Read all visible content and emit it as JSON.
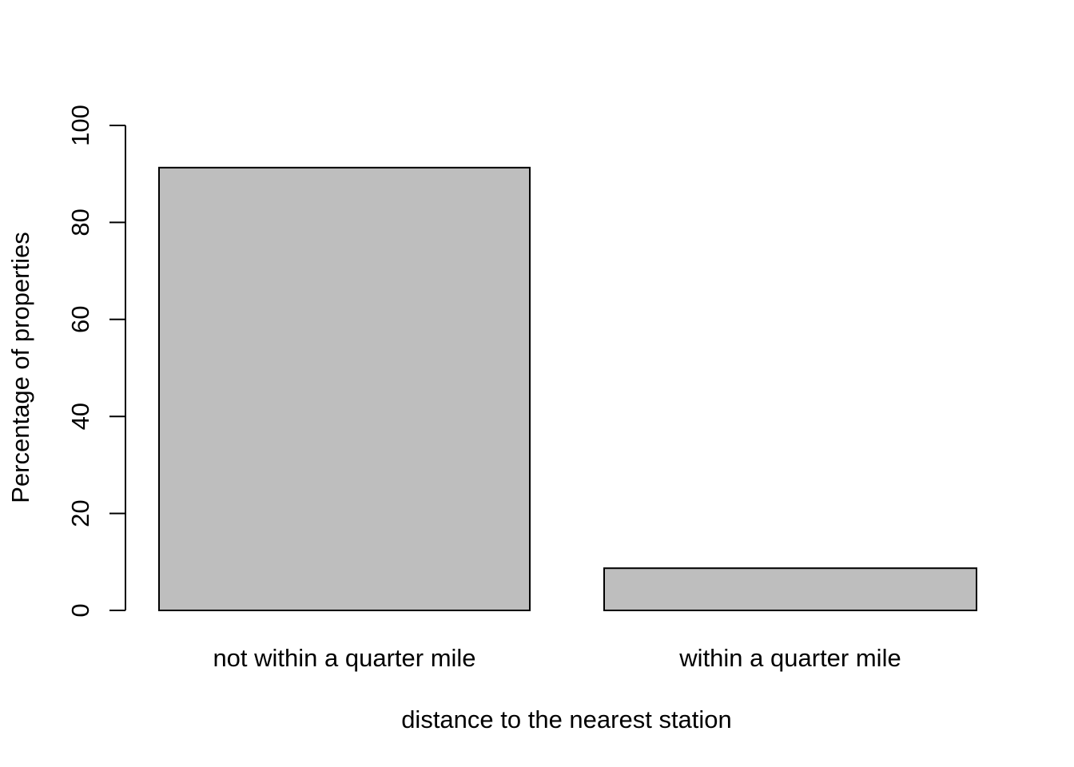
{
  "chart_data": {
    "type": "bar",
    "categories": [
      "not within a quarter mile",
      "within a quarter mile"
    ],
    "values": [
      91.3,
      8.7
    ],
    "xlabel": "distance to the nearest station",
    "ylabel": "Percentage of properties",
    "ylim": [
      0,
      100
    ],
    "yticks": [
      0,
      20,
      40,
      60,
      80,
      100
    ],
    "ytick_labels": [
      "0",
      "20",
      "40",
      "60",
      "80",
      "100"
    ],
    "grid": false,
    "legend": "none",
    "colors": {
      "bar_fill": "#bebebe",
      "bar_stroke": "#000000",
      "axis": "#000000"
    }
  }
}
